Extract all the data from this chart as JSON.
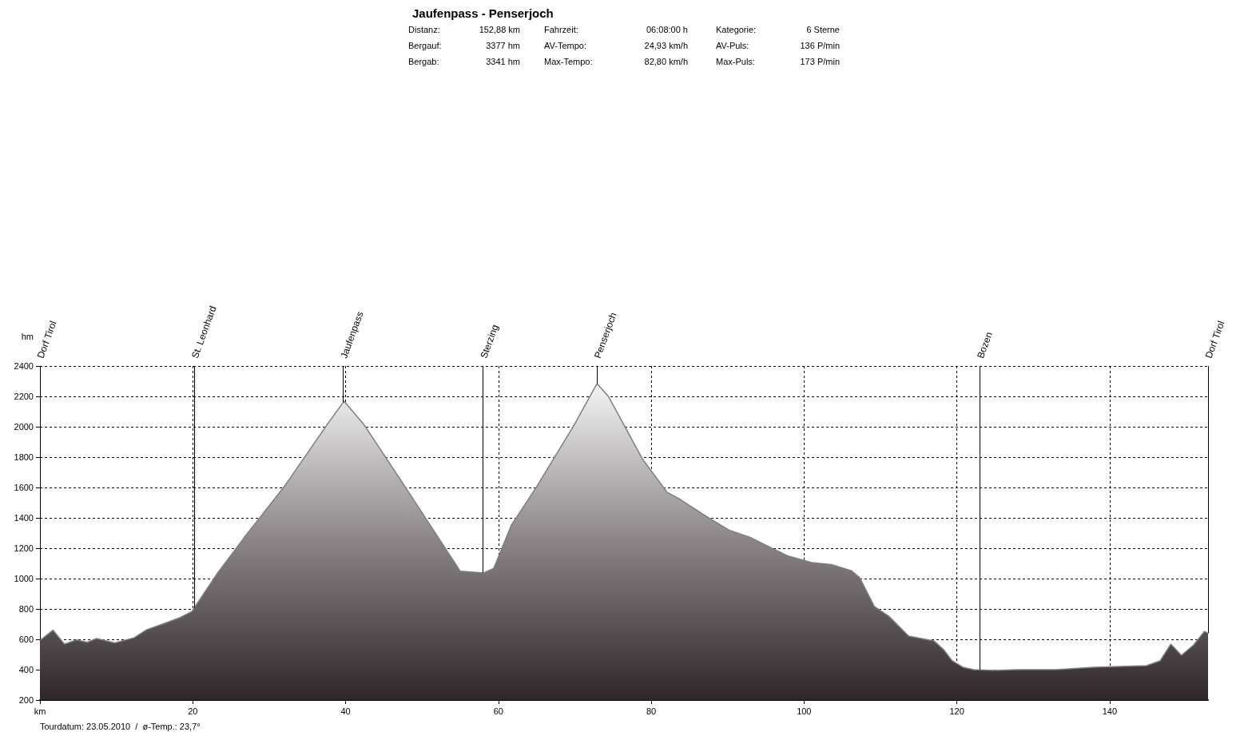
{
  "chart_data": {
    "type": "area",
    "title": "Jaufenpass - Penserjoch",
    "ylabel": "hm",
    "annotations": [
      "Distanz:",
      "152,88 km",
      "Fahrzeit:",
      "06:08:00 h",
      "Kategorie:",
      "6 Sterne",
      "Bergauf:",
      "3377 hm",
      "AV-Tempo:",
      "24,93 km/h",
      "AV-Puls:",
      "136 P/min",
      "Bergab:",
      "3341 hm",
      "Max-Tempo:",
      "82,80 km/h",
      "Max-Puls:",
      "173 P/min",
      "Tourdatum: 23.05.2010  /  ø-Temp.: 23,7°"
    ],
    "series": [
      {
        "color": "#7f7f7f",
        "x": [
          0,
          0.2,
          1.7,
          3.2,
          4.8,
          6.2,
          7.4,
          9.8,
          12.3,
          14,
          15.9,
          18.3,
          19.9,
          23.1,
          26.7,
          31.9,
          37.6,
          39.8,
          42.4,
          49.3,
          55,
          58.1,
          59.4,
          61.7,
          65,
          69.9,
          72.9,
          74.4,
          78.9,
          82.1,
          83.8,
          87.5,
          90.2,
          93.1,
          96.1,
          98,
          101,
          103.6,
          106.2,
          107.3,
          109.2,
          111.1,
          113.7,
          115.9,
          117,
          118.3,
          119.4,
          120.8,
          122.2,
          125,
          128,
          133,
          137.9,
          144.8,
          146.6,
          148,
          149.4,
          151,
          152.4,
          152.88
        ],
        "values": [
          600,
          600,
          660,
          568,
          596,
          580,
          605,
          576,
          610,
          664,
          697,
          742,
          784,
          1026,
          1268,
          1601,
          2015,
          2168,
          2015,
          1489,
          1049,
          1037,
          1068,
          1352,
          1605,
          2010,
          2284,
          2200,
          1784,
          1568,
          1521,
          1400,
          1319,
          1268,
          1192,
          1147,
          1105,
          1092,
          1052,
          1005,
          816,
          752,
          621,
          600,
          590,
          531,
          458,
          416,
          400,
          395,
          400,
          400,
          416,
          426,
          458,
          568,
          495,
          563,
          652,
          640
        ]
      }
    ],
    "xlim": [
      0,
      152.88
    ],
    "xticks": [
      {
        "value": 0,
        "label": "km"
      },
      20,
      40,
      60,
      80,
      100,
      120,
      140
    ],
    "ylim": [
      200,
      2400
    ],
    "yticks": [
      200,
      400,
      600,
      800,
      1000,
      1200,
      1400,
      1600,
      1800,
      2000,
      2200,
      2400
    ],
    "grid": true,
    "marker": "none",
    "ref_lines": [
      {
        "axis": "x",
        "value": 0,
        "label": "Dorf Tirol"
      },
      {
        "axis": "x",
        "value": 20.2,
        "label": "St. Leonhard"
      },
      {
        "axis": "x",
        "value": 39.7,
        "label": "Jaufenpass"
      },
      {
        "axis": "x",
        "value": 58,
        "label": "Sterzing"
      },
      {
        "axis": "x",
        "value": 72.9,
        "label": "Penserjoch"
      },
      {
        "axis": "x",
        "value": 123,
        "label": "Bozen"
      },
      {
        "axis": "x",
        "value": 152.88,
        "label": "Dorf Tirol"
      }
    ]
  }
}
